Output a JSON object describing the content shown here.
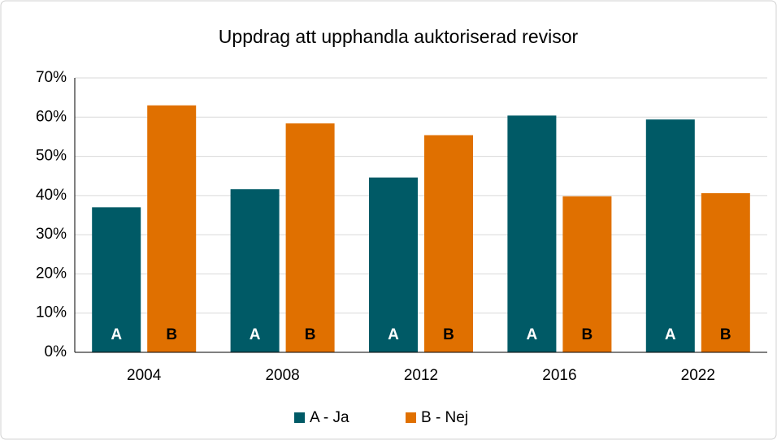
{
  "chart_data": {
    "type": "bar",
    "title": "Uppdrag att upphandla  auktoriserad revisor",
    "categories": [
      "2004",
      "2008",
      "2012",
      "2016",
      "2022"
    ],
    "series": [
      {
        "name": "A - Ja",
        "label": "A",
        "color": "#005a66",
        "values": [
          37,
          41.6,
          44.6,
          60.4,
          59.4
        ]
      },
      {
        "name": "B - Nej",
        "label": "B",
        "color": "#e07000",
        "values": [
          63,
          58.4,
          55.4,
          39.8,
          40.6
        ]
      }
    ],
    "ylim": [
      0,
      70
    ],
    "yticks": [
      {
        "value": 0,
        "label": "0%"
      },
      {
        "value": 10,
        "label": "10%"
      },
      {
        "value": 20,
        "label": "20%"
      },
      {
        "value": 30,
        "label": "30%"
      },
      {
        "value": 40,
        "label": "40%"
      },
      {
        "value": 50,
        "label": "50%"
      },
      {
        "value": 60,
        "label": "60%"
      },
      {
        "value": 70,
        "label": "70%"
      }
    ],
    "grid": true,
    "legend": "bottom"
  }
}
